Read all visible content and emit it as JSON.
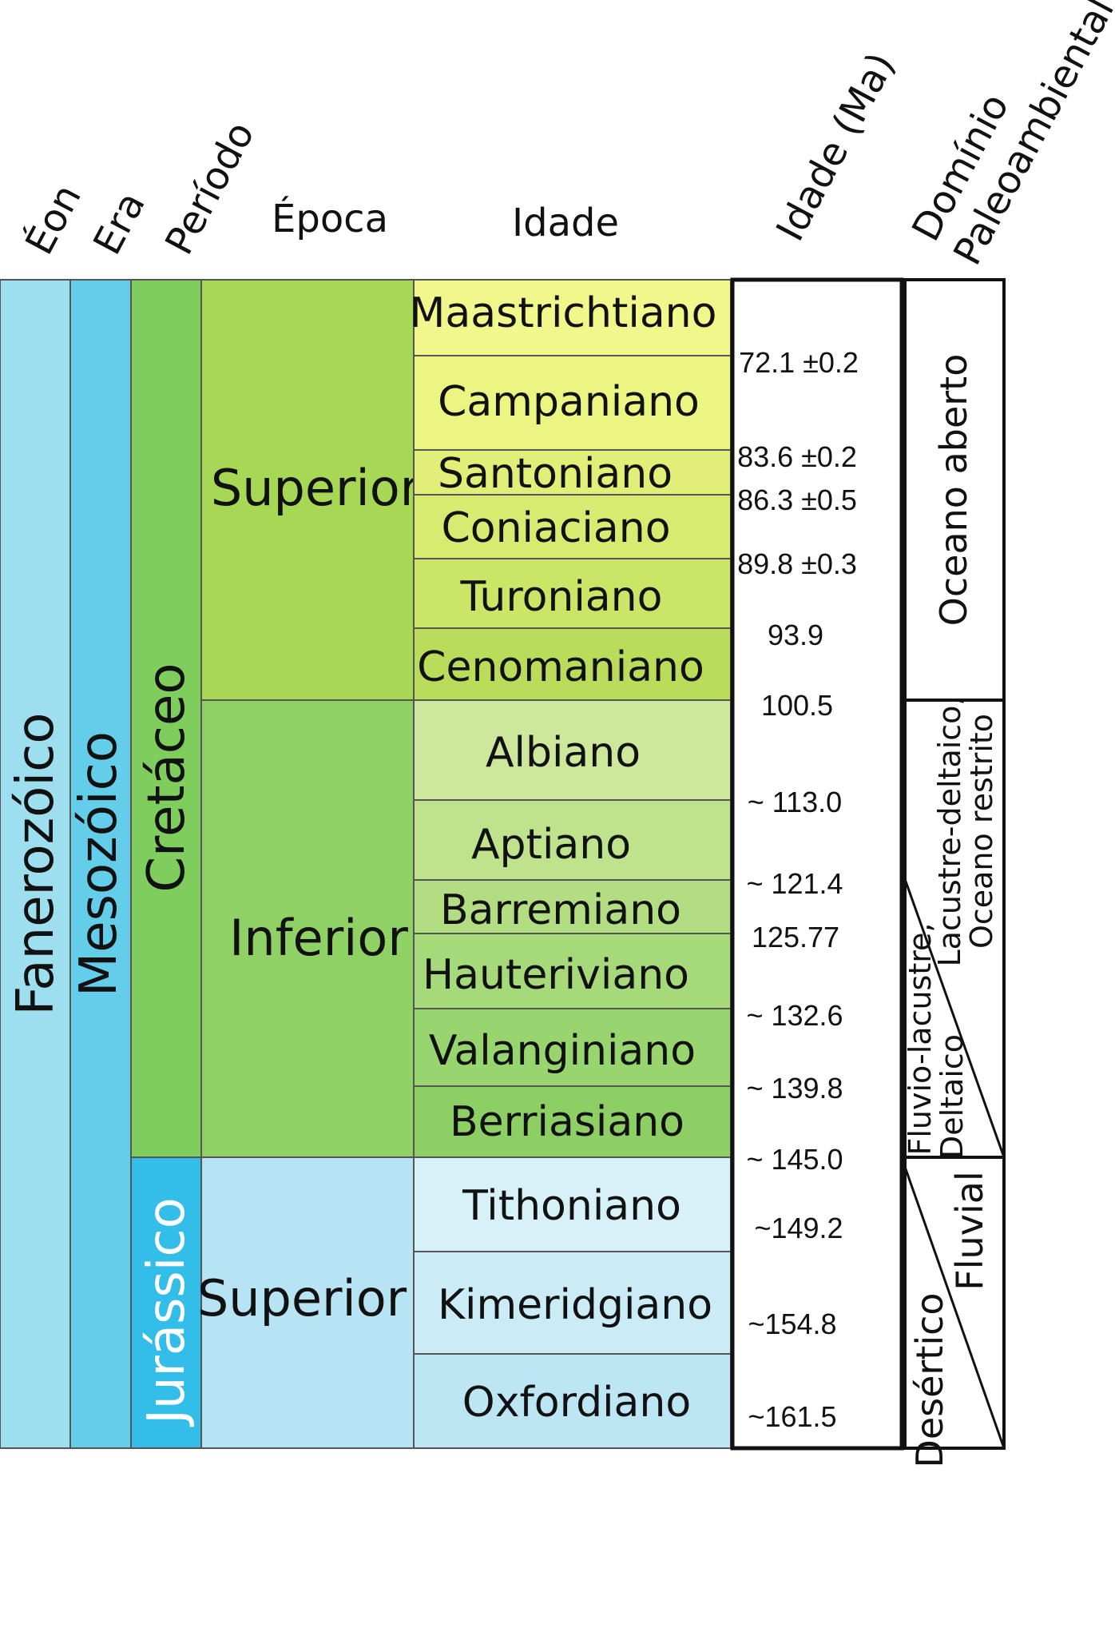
{
  "headers": {
    "eon": "Éon",
    "era": "Era",
    "period": "Período",
    "epoch": "Época",
    "stage": "Idade",
    "age_ma": "Idade (Ma)",
    "domain_line1": "Domínio",
    "domain_line2": "Paleoambiental"
  },
  "eon": "Fanerozóico",
  "era": "Mesozóico",
  "periods": [
    "Cretáceo",
    "Jurássico"
  ],
  "epochs": [
    "Superior",
    "Inferior",
    "Superior"
  ],
  "stages": [
    "Maastrichtiano",
    "Campaniano",
    "Santoniano",
    "Coniaciano",
    "Turoniano",
    "Cenomaniano",
    "Albiano",
    "Aptiano",
    "Barremiano",
    "Hauteriviano",
    "Valanginiano",
    "Berriasiano",
    "Tithoniano",
    "Kimeridgiano",
    "Oxfordiano"
  ],
  "ages": [
    "72.1 ±0.2",
    "83.6 ±0.2",
    "86.3 ±0.5",
    "89.8 ±0.3",
    "93.9",
    "100.5",
    "~ 113.0",
    "~ 121.4",
    "125.77",
    "~ 132.6",
    "~ 139.8",
    "~ 145.0",
    "~149.2",
    "~154.8",
    "~161.5"
  ],
  "domains": {
    "oceano": "Oceano aberto",
    "lacustre_1": "Lacustre-deltaico,",
    "lacustre_2": "Oceano restrito",
    "fluvio_1": "Fluvio-lacustre,",
    "fluvio_2": "Deltaico",
    "fluvial": "Fluvial",
    "desertico": "Desértico"
  },
  "colors": {
    "eon": "#9ddfee",
    "era": "#64cdea",
    "cretaceous": "#7fcd5d",
    "jurassic": "#33bde9",
    "upper_cretaceous": "#a6d855",
    "lower_cretaceous": "#8fd165",
    "upper_jurassic": "#b6e4f5",
    "maastrichtian": "#f2f78c",
    "campanian": "#ebf582",
    "santonian": "#e1ef78",
    "coniacian": "#d6eb70",
    "turonian": "#cbe566",
    "cenomanian": "#b9dd5a",
    "albian": "#cde89c",
    "aptian": "#bfe38d",
    "barremian": "#b2dd82",
    "hauterivian": "#a5d979",
    "valanginian": "#99d56e",
    "berriasian": "#8dcf64",
    "tithonian": "#d7f1f9",
    "kimmeridgian": "#cbecf7",
    "oxfordian": "#bde6f5"
  }
}
